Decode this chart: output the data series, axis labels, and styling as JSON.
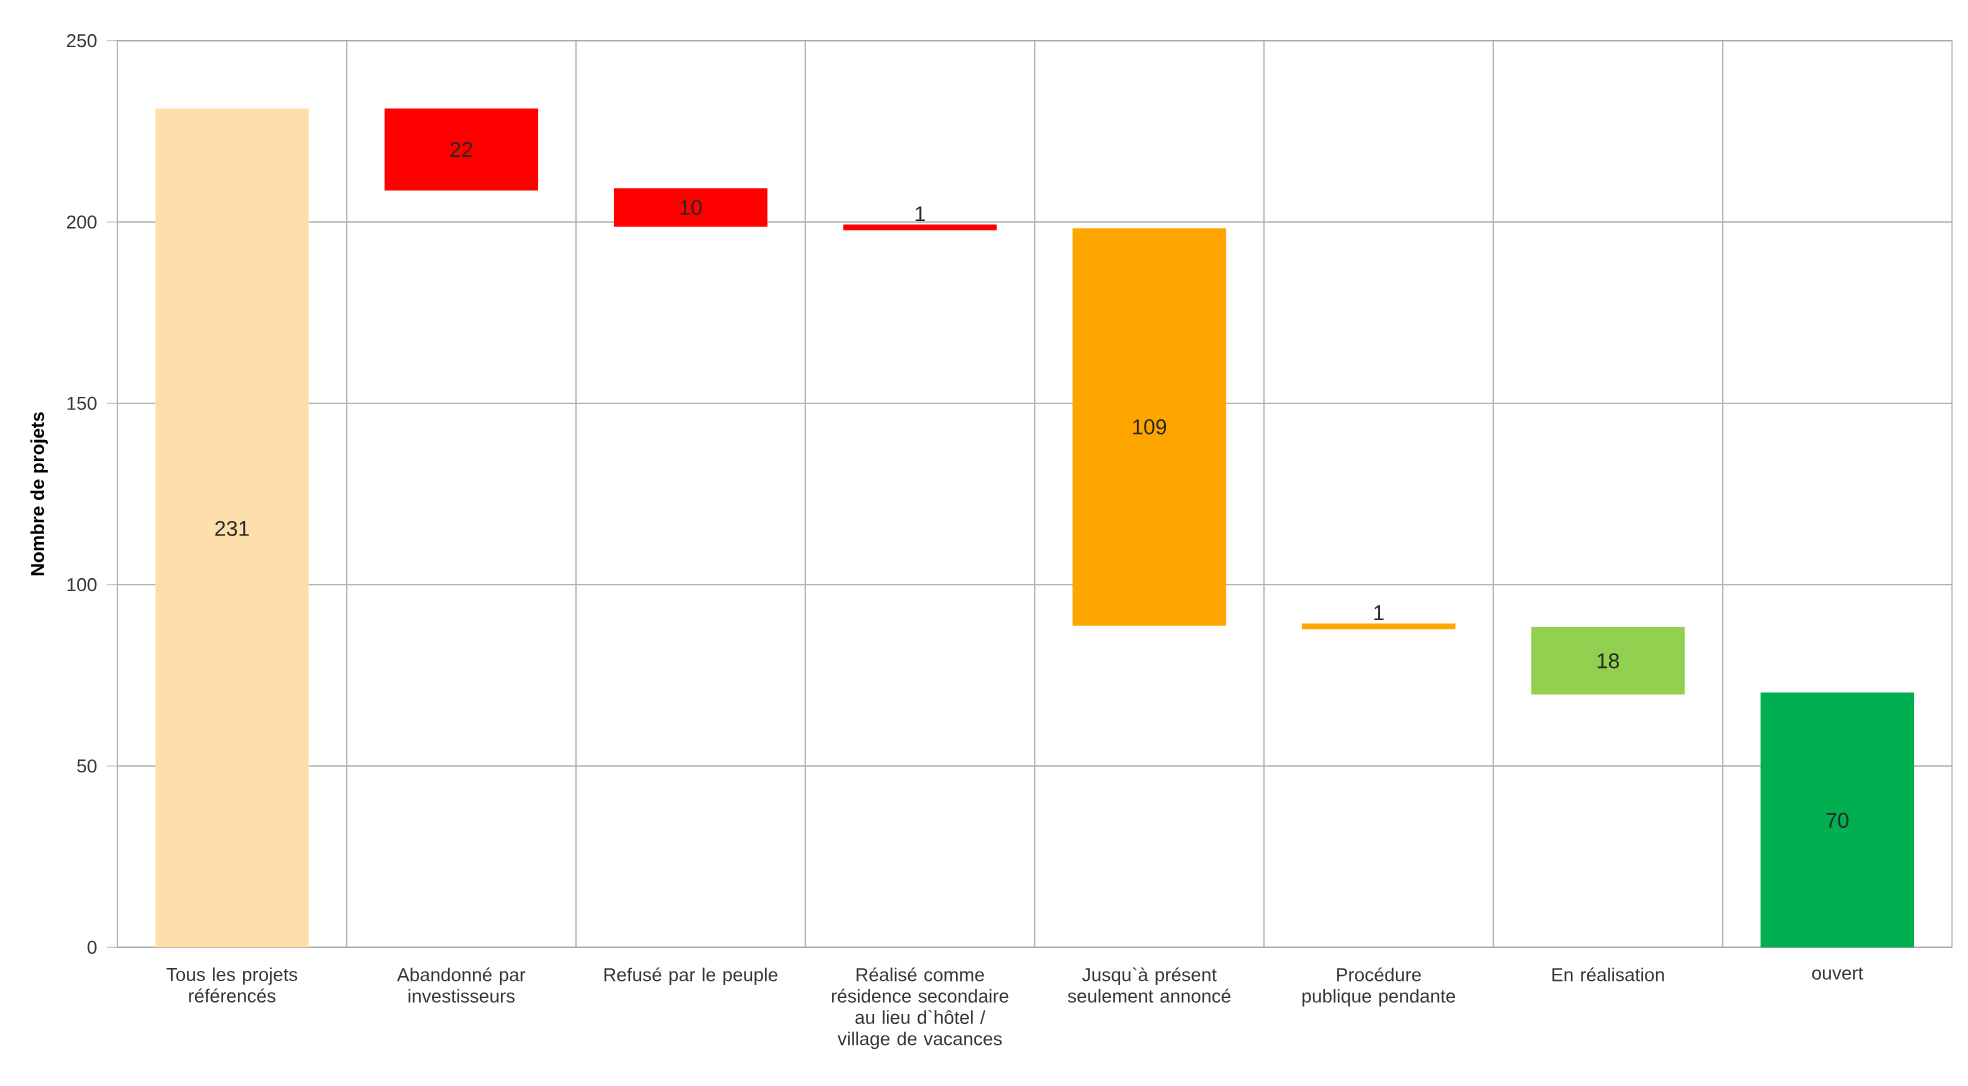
{
  "chart_data": {
    "type": "bar",
    "ylabel": "Nombre de projets",
    "categories": [
      "Tous les projets référencés",
      "Abandonné par investisseurs",
      "Refusé par le peuple",
      "Réalisé comme résidence secondaire au lieu d`hôtel / village de vacances",
      "Jusqu`à présent seulement annoncé",
      "Procédure publique pendante",
      "En réalisation",
      "ouvert"
    ],
    "values": [
      231,
      22,
      10,
      1,
      109,
      1,
      18,
      70
    ],
    "base": [
      0,
      209,
      199,
      198,
      89,
      88,
      70,
      0
    ],
    "colors": [
      "#fddfab",
      "#ff0000",
      "#ff0000",
      "#ff0000",
      "#ffa500",
      "#ffa500",
      "#92d050",
      "#00b050"
    ],
    "ylim": [
      0,
      250
    ],
    "yticks": [
      0,
      50,
      100,
      150,
      200,
      250
    ],
    "grid": true,
    "data_labels": true
  }
}
